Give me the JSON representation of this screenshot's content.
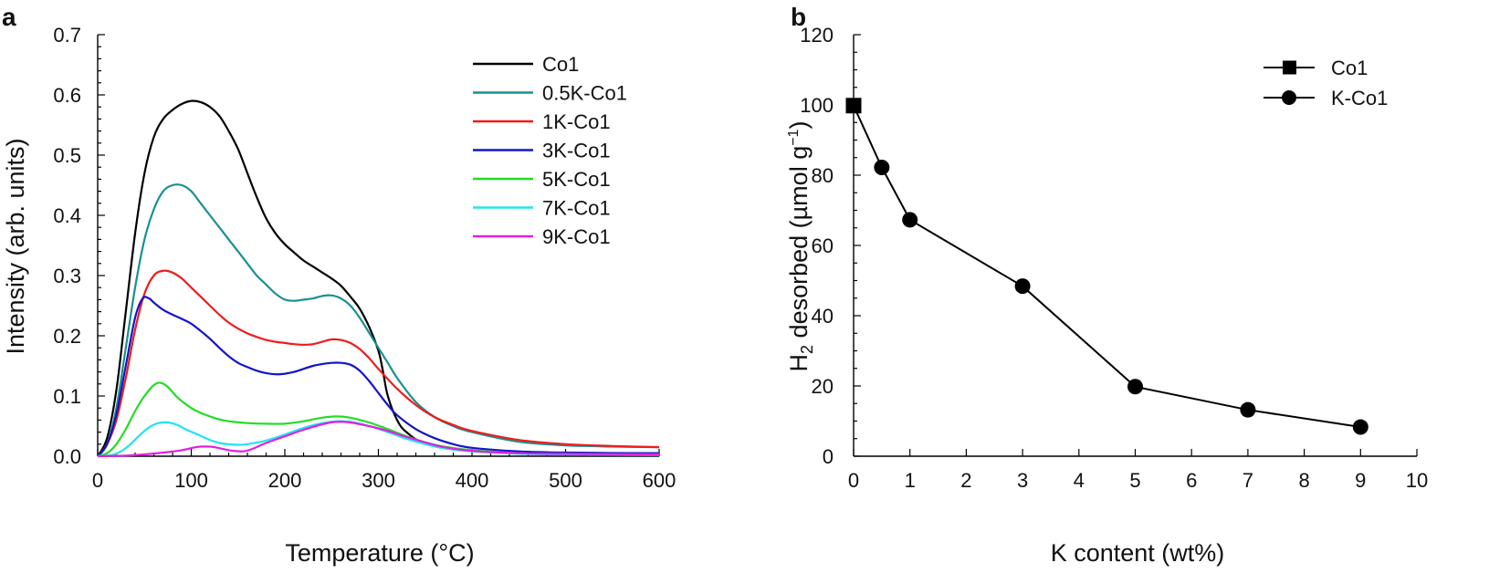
{
  "chart_data": [
    {
      "panel": "a",
      "type": "line",
      "xlabel": "Temperature (°C)",
      "ylabel": "Intensity (arb. units)",
      "xlim": [
        0,
        600
      ],
      "ylim": [
        0,
        0.7
      ],
      "xticks": [
        0,
        100,
        200,
        300,
        400,
        500,
        600
      ],
      "yticks": [
        "0.0",
        "0.1",
        "0.2",
        "0.3",
        "0.4",
        "0.5",
        "0.6",
        "0.7"
      ],
      "legend_position": "top-right",
      "grid": false,
      "series": [
        {
          "name": "Co1",
          "color": "#000000",
          "points": [
            [
              0,
              0
            ],
            [
              10,
              0.03
            ],
            [
              20,
              0.11
            ],
            [
              30,
              0.24
            ],
            [
              40,
              0.37
            ],
            [
              50,
              0.47
            ],
            [
              60,
              0.53
            ],
            [
              70,
              0.56
            ],
            [
              80,
              0.575
            ],
            [
              90,
              0.585
            ],
            [
              100,
              0.59
            ],
            [
              110,
              0.588
            ],
            [
              120,
              0.58
            ],
            [
              130,
              0.565
            ],
            [
              140,
              0.54
            ],
            [
              150,
              0.51
            ],
            [
              160,
              0.47
            ],
            [
              170,
              0.43
            ],
            [
              180,
              0.395
            ],
            [
              190,
              0.37
            ],
            [
              200,
              0.352
            ],
            [
              210,
              0.338
            ],
            [
              220,
              0.325
            ],
            [
              230,
              0.315
            ],
            [
              240,
              0.305
            ],
            [
              250,
              0.295
            ],
            [
              260,
              0.283
            ],
            [
              270,
              0.265
            ],
            [
              280,
              0.245
            ],
            [
              290,
              0.215
            ],
            [
              300,
              0.175
            ],
            [
              305,
              0.14
            ],
            [
              310,
              0.1
            ],
            [
              320,
              0.06
            ],
            [
              330,
              0.04
            ],
            [
              350,
              0.022
            ],
            [
              400,
              0.009
            ],
            [
              450,
              0.006
            ],
            [
              500,
              0.005
            ],
            [
              600,
              0.005
            ]
          ]
        },
        {
          "name": "0.5K-Co1",
          "color": "#1a9090",
          "points": [
            [
              0,
              0
            ],
            [
              10,
              0.02
            ],
            [
              20,
              0.08
            ],
            [
              30,
              0.18
            ],
            [
              40,
              0.28
            ],
            [
              50,
              0.36
            ],
            [
              60,
              0.41
            ],
            [
              70,
              0.44
            ],
            [
              80,
              0.45
            ],
            [
              90,
              0.45
            ],
            [
              100,
              0.44
            ],
            [
              110,
              0.42
            ],
            [
              120,
              0.4
            ],
            [
              130,
              0.38
            ],
            [
              140,
              0.36
            ],
            [
              150,
              0.34
            ],
            [
              160,
              0.32
            ],
            [
              170,
              0.3
            ],
            [
              180,
              0.285
            ],
            [
              190,
              0.27
            ],
            [
              200,
              0.26
            ],
            [
              210,
              0.258
            ],
            [
              220,
              0.26
            ],
            [
              230,
              0.262
            ],
            [
              240,
              0.266
            ],
            [
              250,
              0.267
            ],
            [
              260,
              0.262
            ],
            [
              270,
              0.25
            ],
            [
              280,
              0.23
            ],
            [
              290,
              0.205
            ],
            [
              300,
              0.18
            ],
            [
              310,
              0.155
            ],
            [
              320,
              0.13
            ],
            [
              340,
              0.09
            ],
            [
              360,
              0.065
            ],
            [
              380,
              0.05
            ],
            [
              400,
              0.04
            ],
            [
              450,
              0.024
            ],
            [
              500,
              0.018
            ],
            [
              550,
              0.016
            ],
            [
              600,
              0.015
            ]
          ]
        },
        {
          "name": "1K-Co1",
          "color": "#ee1c1c",
          "points": [
            [
              0,
              0
            ],
            [
              10,
              0.02
            ],
            [
              20,
              0.06
            ],
            [
              30,
              0.13
            ],
            [
              40,
              0.21
            ],
            [
              50,
              0.27
            ],
            [
              60,
              0.3
            ],
            [
              70,
              0.308
            ],
            [
              80,
              0.305
            ],
            [
              90,
              0.295
            ],
            [
              100,
              0.28
            ],
            [
              110,
              0.265
            ],
            [
              120,
              0.25
            ],
            [
              130,
              0.235
            ],
            [
              140,
              0.222
            ],
            [
              150,
              0.212
            ],
            [
              160,
              0.204
            ],
            [
              170,
              0.198
            ],
            [
              180,
              0.193
            ],
            [
              190,
              0.19
            ],
            [
              200,
              0.188
            ],
            [
              210,
              0.186
            ],
            [
              220,
              0.185
            ],
            [
              230,
              0.186
            ],
            [
              240,
              0.19
            ],
            [
              250,
              0.194
            ],
            [
              260,
              0.193
            ],
            [
              270,
              0.188
            ],
            [
              280,
              0.178
            ],
            [
              290,
              0.163
            ],
            [
              300,
              0.145
            ],
            [
              320,
              0.112
            ],
            [
              340,
              0.085
            ],
            [
              360,
              0.065
            ],
            [
              380,
              0.052
            ],
            [
              400,
              0.042
            ],
            [
              450,
              0.027
            ],
            [
              500,
              0.02
            ],
            [
              550,
              0.017
            ],
            [
              600,
              0.015
            ]
          ]
        },
        {
          "name": "3K-Co1",
          "color": "#1414c8",
          "points": [
            [
              0,
              0
            ],
            [
              10,
              0.02
            ],
            [
              20,
              0.07
            ],
            [
              30,
              0.15
            ],
            [
              40,
              0.23
            ],
            [
              48,
              0.262
            ],
            [
              55,
              0.262
            ],
            [
              60,
              0.255
            ],
            [
              70,
              0.243
            ],
            [
              80,
              0.235
            ],
            [
              90,
              0.228
            ],
            [
              100,
              0.22
            ],
            [
              110,
              0.208
            ],
            [
              120,
              0.195
            ],
            [
              130,
              0.18
            ],
            [
              140,
              0.166
            ],
            [
              150,
              0.155
            ],
            [
              160,
              0.148
            ],
            [
              170,
              0.142
            ],
            [
              180,
              0.138
            ],
            [
              190,
              0.136
            ],
            [
              200,
              0.137
            ],
            [
              210,
              0.14
            ],
            [
              220,
              0.145
            ],
            [
              230,
              0.15
            ],
            [
              240,
              0.153
            ],
            [
              250,
              0.155
            ],
            [
              260,
              0.155
            ],
            [
              270,
              0.152
            ],
            [
              280,
              0.142
            ],
            [
              290,
              0.125
            ],
            [
              300,
              0.105
            ],
            [
              310,
              0.085
            ],
            [
              320,
              0.068
            ],
            [
              340,
              0.045
            ],
            [
              360,
              0.03
            ],
            [
              380,
              0.02
            ],
            [
              400,
              0.014
            ],
            [
              450,
              0.008
            ],
            [
              500,
              0.006
            ],
            [
              600,
              0.005
            ]
          ]
        },
        {
          "name": "5K-Co1",
          "color": "#22dd22",
          "points": [
            [
              0,
              0
            ],
            [
              10,
              0.005
            ],
            [
              20,
              0.02
            ],
            [
              30,
              0.045
            ],
            [
              40,
              0.075
            ],
            [
              50,
              0.1
            ],
            [
              60,
              0.118
            ],
            [
              67,
              0.122
            ],
            [
              75,
              0.115
            ],
            [
              85,
              0.098
            ],
            [
              100,
              0.08
            ],
            [
              110,
              0.072
            ],
            [
              120,
              0.066
            ],
            [
              130,
              0.061
            ],
            [
              140,
              0.058
            ],
            [
              160,
              0.055
            ],
            [
              180,
              0.054
            ],
            [
              200,
              0.054
            ],
            [
              220,
              0.058
            ],
            [
              240,
              0.064
            ],
            [
              255,
              0.066
            ],
            [
              270,
              0.064
            ],
            [
              290,
              0.056
            ],
            [
              310,
              0.045
            ],
            [
              330,
              0.033
            ],
            [
              350,
              0.023
            ],
            [
              370,
              0.016
            ],
            [
              400,
              0.01
            ],
            [
              450,
              0.005
            ],
            [
              500,
              0.004
            ],
            [
              600,
              0.003
            ]
          ]
        },
        {
          "name": "7K-Co1",
          "color": "#22e5f0",
          "points": [
            [
              0,
              0
            ],
            [
              15,
              0.002
            ],
            [
              25,
              0.008
            ],
            [
              35,
              0.02
            ],
            [
              45,
              0.035
            ],
            [
              55,
              0.048
            ],
            [
              65,
              0.055
            ],
            [
              75,
              0.056
            ],
            [
              85,
              0.052
            ],
            [
              95,
              0.044
            ],
            [
              110,
              0.034
            ],
            [
              120,
              0.027
            ],
            [
              130,
              0.022
            ],
            [
              140,
              0.02
            ],
            [
              150,
              0.019
            ],
            [
              160,
              0.02
            ],
            [
              180,
              0.026
            ],
            [
              200,
              0.036
            ],
            [
              220,
              0.047
            ],
            [
              240,
              0.055
            ],
            [
              255,
              0.058
            ],
            [
              270,
              0.057
            ],
            [
              290,
              0.05
            ],
            [
              310,
              0.04
            ],
            [
              330,
              0.029
            ],
            [
              350,
              0.02
            ],
            [
              370,
              0.013
            ],
            [
              400,
              0.008
            ],
            [
              450,
              0.004
            ],
            [
              500,
              0.003
            ],
            [
              600,
              0.002
            ]
          ]
        },
        {
          "name": "9K-Co1",
          "color": "#e020e0",
          "points": [
            [
              0,
              0
            ],
            [
              30,
              0.001
            ],
            [
              50,
              0.003
            ],
            [
              70,
              0.006
            ],
            [
              90,
              0.01
            ],
            [
              105,
              0.015
            ],
            [
              115,
              0.016
            ],
            [
              125,
              0.015
            ],
            [
              140,
              0.01
            ],
            [
              155,
              0.008
            ],
            [
              165,
              0.012
            ],
            [
              180,
              0.022
            ],
            [
              200,
              0.033
            ],
            [
              220,
              0.044
            ],
            [
              240,
              0.053
            ],
            [
              255,
              0.057
            ],
            [
              270,
              0.056
            ],
            [
              290,
              0.05
            ],
            [
              310,
              0.042
            ],
            [
              330,
              0.032
            ],
            [
              350,
              0.023
            ],
            [
              370,
              0.015
            ],
            [
              400,
              0.009
            ],
            [
              450,
              0.005
            ],
            [
              500,
              0.004
            ],
            [
              600,
              0.003
            ]
          ]
        }
      ]
    },
    {
      "panel": "b",
      "type": "line",
      "xlabel": "K content (wt%)",
      "ylabel_main": "H",
      "ylabel_sub": "2",
      "ylabel_rest": " desorbed (µmol g",
      "ylabel_sup": "−1",
      "ylabel_close": ")",
      "xlim": [
        0,
        10
      ],
      "ylim": [
        0,
        120
      ],
      "xticks": [
        0,
        1,
        2,
        3,
        4,
        5,
        6,
        7,
        8,
        9,
        10
      ],
      "yticks": [
        0,
        20,
        40,
        60,
        80,
        100,
        120
      ],
      "legend_position": "top-right",
      "grid": false,
      "series": [
        {
          "name": "Co1",
          "marker": "square",
          "color": "#000000",
          "points": [
            [
              0,
              99.8
            ]
          ]
        },
        {
          "name": "K-Co1",
          "marker": "circle",
          "color": "#000000",
          "points": [
            [
              0,
              99.8
            ],
            [
              0.5,
              82.2
            ],
            [
              1,
              67.3
            ],
            [
              3,
              48.4
            ],
            [
              5,
              19.8
            ],
            [
              7,
              13.2
            ],
            [
              9,
              8.3
            ]
          ]
        }
      ]
    }
  ]
}
